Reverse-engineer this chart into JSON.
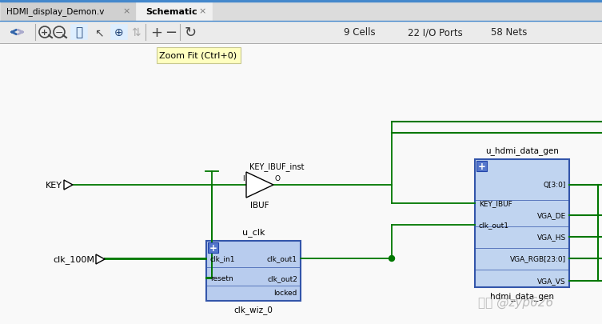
{
  "bg_color": "#f0f0f0",
  "schematic_bg": "#f8f8f8",
  "tab_bar_bg": "#dcdcdc",
  "tab1_bg": "#d0d0d0",
  "tab2_bg": "#f0f0f0",
  "toolbar_bg": "#ebebeb",
  "title_tab1": "HDMI_display_Demon.v",
  "title_tab2": "Schematic",
  "toolbar_info": "9 Cells    22 I/O Ports    58 Nets",
  "tooltip_text": "Zoom Fit (Ctrl+0)",
  "tooltip_bg": "#ffffc0",
  "tooltip_border": "#c8c890",
  "wire_color": "#007700",
  "wire_thick": "#005500",
  "component_fill": "#b8ccee",
  "component_fill2": "#c0d4f0",
  "component_border": "#3355aa",
  "plus_fill": "#5577cc",
  "text_color": "#000000",
  "label_color": "#222222",
  "watermark": "知乎 @zyp626",
  "watermark_color": "#b0b0b0",
  "top_bar_blue": "#4488cc",
  "toolbar_icon_color": "#444444",
  "separator_color": "#aaaaaa",
  "tab_border": "#aaaaaa",
  "active_tab_bottom": "#f0f0f0"
}
